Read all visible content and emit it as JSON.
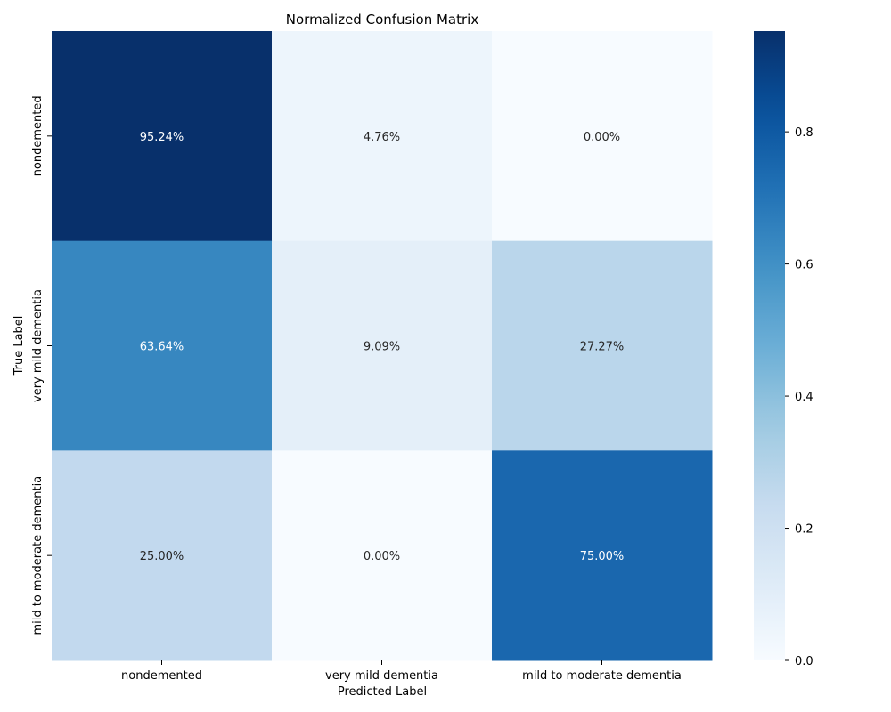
{
  "chart_data": {
    "type": "heatmap",
    "title": "Normalized Confusion Matrix",
    "xlabel": "Predicted Label",
    "ylabel": "True Label",
    "x_categories": [
      "nondemented",
      "very mild dementia",
      "mild to moderate dementia"
    ],
    "y_categories": [
      "nondemented",
      "very mild dementia",
      "mild to moderate dementia"
    ],
    "values": [
      [
        0.9524,
        0.0476,
        0.0
      ],
      [
        0.6364,
        0.0909,
        0.2727
      ],
      [
        0.25,
        0.0,
        0.75
      ]
    ],
    "cell_labels": [
      [
        "95.24%",
        "4.76%",
        "0.00%"
      ],
      [
        "63.64%",
        "9.09%",
        "27.27%"
      ],
      [
        "25.00%",
        "0.00%",
        "75.00%"
      ]
    ],
    "colormap": "Blues",
    "colorbar": {
      "range": [
        0.0,
        0.9524
      ],
      "ticks": [
        0.0,
        0.2,
        0.4,
        0.6,
        0.8
      ],
      "tick_labels": [
        "0.0",
        "0.2",
        "0.4",
        "0.6",
        "0.8"
      ]
    },
    "colors": {
      "text_dark": "#262626",
      "text_light": "#ffffff",
      "axis": "#000000"
    }
  }
}
